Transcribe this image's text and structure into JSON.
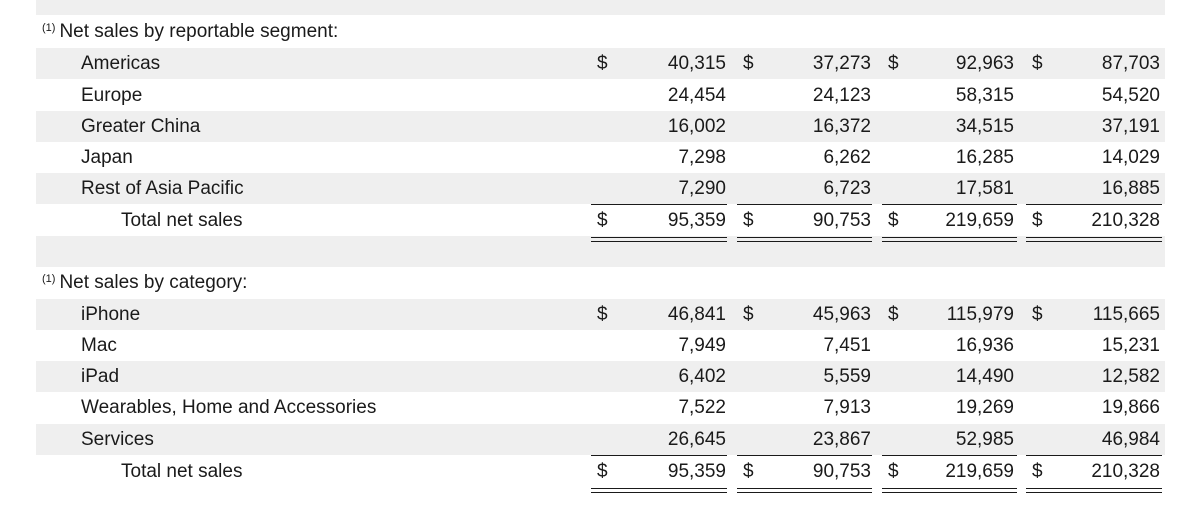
{
  "sections": [
    {
      "footnote": "(1)",
      "heading": "Net sales by reportable segment:",
      "rows": [
        {
          "label": "Americas",
          "values": [
            "40,315",
            "37,273",
            "92,963",
            "87,703"
          ]
        },
        {
          "label": "Europe",
          "values": [
            "24,454",
            "24,123",
            "58,315",
            "54,520"
          ]
        },
        {
          "label": "Greater China",
          "values": [
            "16,002",
            "16,372",
            "34,515",
            "37,191"
          ]
        },
        {
          "label": "Japan",
          "values": [
            "7,298",
            "6,262",
            "16,285",
            "14,029"
          ]
        },
        {
          "label": "Rest of Asia Pacific",
          "values": [
            "7,290",
            "6,723",
            "17,581",
            "16,885"
          ]
        }
      ],
      "total": {
        "label": "Total net sales",
        "values": [
          "95,359",
          "90,753",
          "219,659",
          "210,328"
        ]
      }
    },
    {
      "footnote": "(1)",
      "heading": "Net sales by category:",
      "rows": [
        {
          "label": "iPhone",
          "values": [
            "46,841",
            "45,963",
            "115,979",
            "115,665"
          ]
        },
        {
          "label": "Mac",
          "values": [
            "7,949",
            "7,451",
            "16,936",
            "15,231"
          ]
        },
        {
          "label": "iPad",
          "values": [
            "6,402",
            "5,559",
            "14,490",
            "12,582"
          ]
        },
        {
          "label": "Wearables, Home and Accessories",
          "values": [
            "7,522",
            "7,913",
            "19,269",
            "19,866"
          ]
        },
        {
          "label": "Services",
          "values": [
            "26,645",
            "23,867",
            "52,985",
            "46,984"
          ]
        }
      ],
      "total": {
        "label": "Total net sales",
        "values": [
          "95,359",
          "90,753",
          "219,659",
          "210,328"
        ]
      }
    }
  ],
  "currency_symbol": "$"
}
